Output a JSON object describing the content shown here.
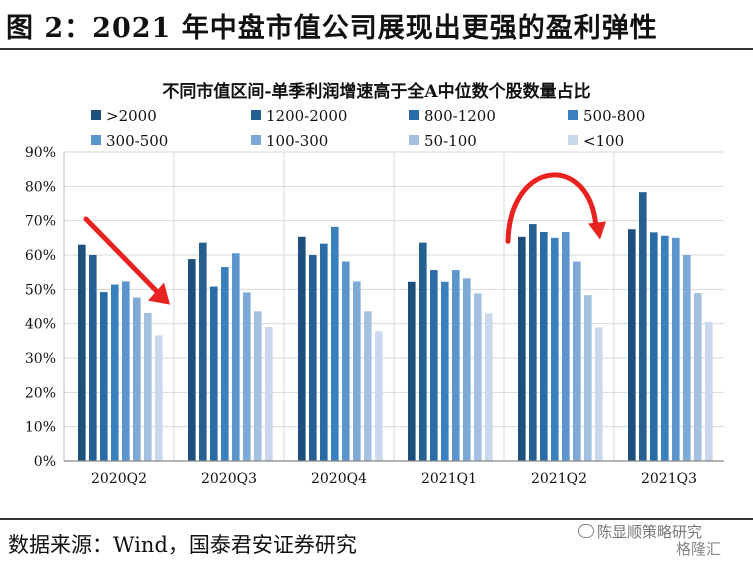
{
  "figure_title": "图 2：2021 年中盘市值公司展现出更强的盈利弹性",
  "source": "数据来源：Wind，国泰君安证券研究",
  "watermark": "陈显顺策略研究",
  "watermark2": "格隆汇",
  "chart_data": {
    "type": "bar",
    "title": "不同市值区间-单季利润增速高于全A中位数个股数量占比",
    "xlabel": "",
    "ylabel": "",
    "ylim": [
      0,
      90
    ],
    "yticks": [
      "0%",
      "10%",
      "20%",
      "30%",
      "40%",
      "50%",
      "60%",
      "70%",
      "80%",
      "90%"
    ],
    "grid": true,
    "legend_position": "top",
    "categories": [
      "2020Q2",
      "2020Q3",
      "2020Q4",
      "2021Q1",
      "2021Q2",
      "2021Q3"
    ],
    "series": [
      {
        "name": ">2000",
        "color": "#1c4f7c",
        "values": [
          63.0,
          58.8,
          65.3,
          52.2,
          65.3,
          67.5
        ]
      },
      {
        "name": "1200-2000",
        "color": "#255f93",
        "values": [
          60.0,
          63.6,
          60.0,
          63.6,
          69.0,
          78.3
        ]
      },
      {
        "name": "800-1200",
        "color": "#2a6ca8",
        "values": [
          49.2,
          50.8,
          63.3,
          55.6,
          66.7,
          66.6
        ]
      },
      {
        "name": "500-800",
        "color": "#3a7fbe",
        "values": [
          51.4,
          56.5,
          68.2,
          52.2,
          65.0,
          65.6
        ]
      },
      {
        "name": "300-500",
        "color": "#5b95cc",
        "values": [
          52.3,
          60.5,
          58.1,
          55.6,
          66.7,
          65.0
        ]
      },
      {
        "name": "100-300",
        "color": "#7ea9d6",
        "values": [
          47.6,
          49.1,
          52.3,
          53.2,
          58.1,
          60.0
        ]
      },
      {
        "name": "50-100",
        "color": "#a3c0e1",
        "values": [
          43.1,
          43.6,
          43.6,
          48.8,
          48.3,
          48.9
        ]
      },
      {
        "name": "<100",
        "color": "#c9d8ec",
        "values": [
          36.6,
          39.0,
          37.8,
          43.0,
          38.9,
          40.5
        ]
      }
    ]
  }
}
